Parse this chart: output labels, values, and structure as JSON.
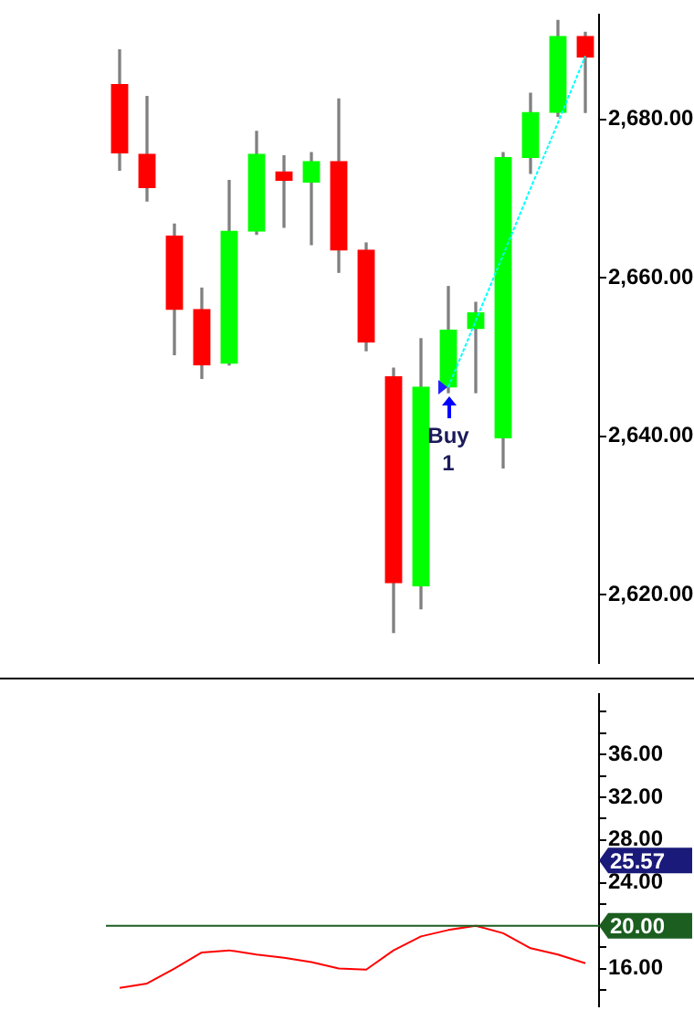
{
  "chart_data": [
    {
      "type": "candlestick",
      "categories": [
        null,
        null,
        null,
        null,
        null,
        null,
        null,
        null,
        null,
        null,
        null,
        null,
        null,
        null,
        null,
        null,
        null,
        null
      ],
      "ohlc": [
        [
          2684.4,
          2688.8,
          2673.6,
          2675.8
        ],
        [
          2675.6,
          2682.9,
          2669.7,
          2671.4
        ],
        [
          2665.3,
          2666.8,
          2650.3,
          2656.0
        ],
        [
          2656.0,
          2658.7,
          2647.3,
          2649.0
        ],
        [
          2649.2,
          2672.3,
          2649.0,
          2665.9
        ],
        [
          2665.9,
          2678.5,
          2665.5,
          2675.6
        ],
        [
          2673.4,
          2675.4,
          2666.4,
          2672.3
        ],
        [
          2672.1,
          2675.8,
          2664.2,
          2674.7
        ],
        [
          2674.7,
          2682.6,
          2660.7,
          2663.5
        ],
        [
          2663.5,
          2664.4,
          2650.8,
          2651.9
        ],
        [
          2647.5,
          2648.6,
          2615.2,
          2621.5
        ],
        [
          2621.1,
          2652.3,
          2618.2,
          2646.2
        ],
        [
          2646.2,
          2658.9,
          2645.5,
          2653.4
        ],
        [
          2653.6,
          2656.9,
          2645.5,
          2655.6
        ],
        [
          2639.8,
          2675.8,
          2636.0,
          2675.2
        ],
        [
          2675.2,
          2683.3,
          2673.2,
          2680.9
        ],
        [
          2680.9,
          2692.5,
          2680.4,
          2690.5
        ],
        [
          2690.5,
          2691.0,
          2680.9,
          2687.9
        ]
      ],
      "colors": [
        "#ff0000",
        "#ff0000",
        "#ff0000",
        "#ff0000",
        "#00ff00",
        "#00ff00",
        "#ff0000",
        "#00ff00",
        "#ff0000",
        "#ff0000",
        "#ff0000",
        "#00ff00",
        "#00ff00",
        "#00ff00",
        "#00ff00",
        "#00ff00",
        "#00ff00",
        "#ff0000"
      ],
      "series": [
        {
          "type": "line",
          "color": "#00ffff",
          "line_style": "dotted",
          "values": [
            null,
            null,
            null,
            null,
            null,
            null,
            null,
            null,
            null,
            null,
            null,
            null,
            2646.2,
            2654.6,
            2662.9,
            2671.3,
            2679.6,
            2688.0
          ]
        }
      ],
      "annotations": [
        "Buy\n1"
      ],
      "ylim": [
        2611.4,
        2693.2
      ],
      "yticks": [
        {
          "value": 2620,
          "label": "2,620.00"
        },
        {
          "value": 2640,
          "label": "2,640.00"
        },
        {
          "value": 2660,
          "label": "2,660.00"
        },
        {
          "value": 2680,
          "label": "2,680.00"
        }
      ],
      "tick_labels": "y",
      "grid": false
    },
    {
      "type": "line",
      "categories": [
        null,
        null,
        null,
        null,
        null,
        null,
        null,
        null,
        null,
        null,
        null,
        null,
        null,
        null,
        null,
        null,
        null,
        null
      ],
      "series": [
        {
          "color": "#ff0000",
          "values": [
            14.2,
            14.6,
            16.0,
            17.5,
            17.7,
            17.3,
            17.0,
            16.6,
            16.0,
            15.9,
            17.7,
            19.0,
            19.6,
            20.0,
            19.3,
            17.9,
            17.3,
            16.5
          ]
        }
      ],
      "ref_lines": [
        {
          "axis": "y",
          "value": 20,
          "label": "20.00",
          "color": "#1b5e20"
        }
      ],
      "annotations": [
        "25.57"
      ],
      "ylim": [
        12.5,
        41.6
      ],
      "yticks": [
        {
          "value": 14,
          "label": null
        },
        {
          "value": 16,
          "label": "16.00"
        },
        {
          "value": 18,
          "label": null
        },
        {
          "value": 20,
          "label": null
        },
        {
          "value": 22,
          "label": null
        },
        {
          "value": 24,
          "label": "24.00"
        },
        {
          "value": 26,
          "label": null
        },
        {
          "value": 28,
          "label": "28.00"
        },
        {
          "value": 30,
          "label": null
        },
        {
          "value": 32,
          "label": "32.00"
        },
        {
          "value": 34,
          "label": null
        },
        {
          "value": 36,
          "label": "36.00"
        },
        {
          "value": 38,
          "label": null
        },
        {
          "value": 40,
          "label": null
        }
      ],
      "tick_labels": "y",
      "grid": false
    }
  ]
}
